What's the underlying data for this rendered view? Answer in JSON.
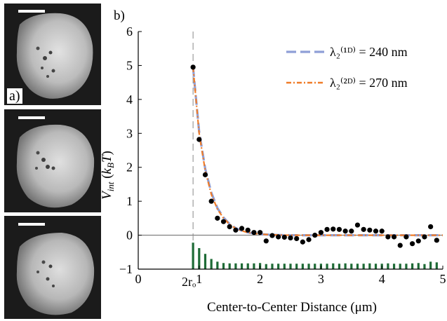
{
  "panel_a_label": "a)",
  "panel_b_label": "b)",
  "micrographs": [
    {
      "name": "micrograph-top"
    },
    {
      "name": "micrograph-middle"
    },
    {
      "name": "micrograph-bottom"
    }
  ],
  "chart_data": {
    "type": "line",
    "xlabel": "Center-to-Center Distance (μm)",
    "ylabel": "V_int (k_B T)",
    "xlim": [
      0,
      5
    ],
    "ylim": [
      -1,
      6
    ],
    "x_ticks": [
      0,
      1,
      2,
      3,
      4,
      5
    ],
    "y_ticks": [
      -1,
      0,
      1,
      2,
      3,
      4,
      5,
      6
    ],
    "x_tick_labels": [
      "0",
      "1",
      "2",
      "3",
      "4",
      "5"
    ],
    "y_tick_labels": [
      "−1",
      "0",
      "1",
      "2",
      "3",
      "4",
      "5",
      "6"
    ],
    "vline_x": 0.9,
    "vline_label": "2rₒ",
    "zero_line": true,
    "legend_position": "top-right",
    "series": [
      {
        "name": "λ₂⁽¹ᴰ⁾ = 240 nm",
        "style": "dashed",
        "color": "#8f9fd6",
        "x": [
          0.9,
          1.0,
          1.1,
          1.2,
          1.3,
          1.4,
          1.5,
          1.6,
          1.7,
          1.8,
          1.9,
          2.0,
          2.2,
          2.5,
          3.0,
          3.5,
          4.0,
          4.5,
          5.0
        ],
        "y": [
          4.95,
          3.05,
          1.95,
          1.25,
          0.8,
          0.52,
          0.33,
          0.21,
          0.13,
          0.08,
          0.05,
          0.03,
          0.01,
          0.0,
          0.0,
          0.0,
          0.0,
          0.0,
          0.0
        ]
      },
      {
        "name": "λ₂⁽²ᴰ⁾ = 270 nm",
        "style": "dash-dot",
        "color": "#f07c28",
        "x": [
          0.9,
          1.0,
          1.1,
          1.2,
          1.3,
          1.4,
          1.5,
          1.6,
          1.7,
          1.8,
          1.9,
          2.0,
          2.2,
          2.5,
          3.0,
          3.5,
          4.0,
          4.5,
          5.0
        ],
        "y": [
          4.95,
          3.0,
          1.9,
          1.2,
          0.77,
          0.5,
          0.32,
          0.2,
          0.13,
          0.08,
          0.05,
          0.03,
          0.01,
          0.0,
          0.0,
          0.0,
          0.0,
          0.0,
          0.0
        ]
      }
    ],
    "scatter": {
      "x": [
        0.9,
        1.0,
        1.1,
        1.2,
        1.3,
        1.4,
        1.5,
        1.6,
        1.7,
        1.8,
        1.9,
        2.0,
        2.1,
        2.2,
        2.3,
        2.4,
        2.5,
        2.6,
        2.7,
        2.8,
        2.9,
        3.0,
        3.1,
        3.2,
        3.3,
        3.4,
        3.5,
        3.6,
        3.7,
        3.8,
        3.9,
        4.0,
        4.1,
        4.2,
        4.3,
        4.4,
        4.5,
        4.6,
        4.7,
        4.8,
        4.9
      ],
      "y": [
        4.95,
        2.82,
        1.78,
        1.0,
        0.5,
        0.4,
        0.25,
        0.15,
        0.2,
        0.15,
        0.08,
        0.08,
        -0.17,
        -0.01,
        -0.05,
        -0.06,
        -0.08,
        -0.1,
        -0.2,
        -0.13,
        0.0,
        0.08,
        0.17,
        0.18,
        0.17,
        0.12,
        0.12,
        0.3,
        0.17,
        0.15,
        0.12,
        0.12,
        -0.05,
        -0.05,
        -0.3,
        -0.05,
        -0.25,
        -0.17,
        -0.05,
        0.25,
        -0.15
      ]
    },
    "histogram": {
      "color": "#1e6b36",
      "x": [
        0.9,
        1.0,
        1.1,
        1.2,
        1.3,
        1.4,
        1.5,
        1.6,
        1.7,
        1.8,
        1.9,
        2.0,
        2.1,
        2.2,
        2.3,
        2.4,
        2.5,
        2.6,
        2.7,
        2.8,
        2.9,
        3.0,
        3.1,
        3.2,
        3.3,
        3.4,
        3.5,
        3.6,
        3.7,
        3.8,
        3.9,
        4.0,
        4.1,
        4.2,
        4.3,
        4.4,
        4.5,
        4.6,
        4.7,
        4.8,
        4.9
      ],
      "y": [
        -0.22,
        -0.38,
        -0.55,
        -0.7,
        -0.78,
        -0.82,
        -0.83,
        -0.83,
        -0.83,
        -0.83,
        -0.83,
        -0.82,
        -0.85,
        -0.84,
        -0.84,
        -0.84,
        -0.84,
        -0.84,
        -0.84,
        -0.84,
        -0.84,
        -0.84,
        -0.84,
        -0.83,
        -0.84,
        -0.83,
        -0.84,
        -0.84,
        -0.84,
        -0.83,
        -0.84,
        -0.84,
        -0.83,
        -0.84,
        -0.84,
        -0.84,
        -0.83,
        -0.82,
        -0.85,
        -0.78,
        -0.8
      ]
    }
  }
}
